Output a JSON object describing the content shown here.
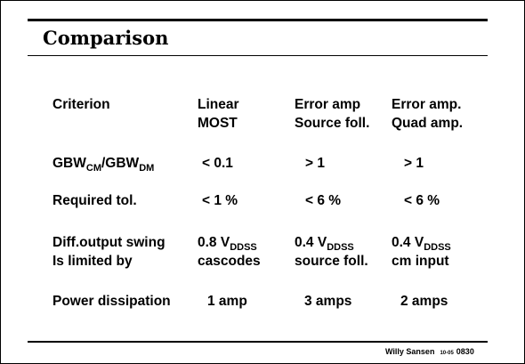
{
  "title": "Comparison",
  "table": {
    "header": {
      "criterion": "Criterion",
      "col1": [
        "Linear",
        "MOST"
      ],
      "col2": [
        "Error amp",
        "Source foll."
      ],
      "col3": [
        "Error amp.",
        "Quad amp."
      ]
    },
    "gbw": {
      "label_main1": "GBW",
      "label_sub1": "CM",
      "label_mid": "/GBW",
      "label_sub2": "DM",
      "col1": "< 0.1",
      "col2": "> 1",
      "col3": "> 1"
    },
    "tol": {
      "label": "Required tol.",
      "col1": "< 1 %",
      "col2": "< 6 %",
      "col3": "< 6 %"
    },
    "swing": {
      "label": [
        "Diff.output swing",
        "Is limited by"
      ],
      "col1_value": "0.8 V",
      "col2_value": "0.4 V",
      "col3_value": "0.4 V",
      "subscript": "DDSS",
      "col1_limit": "cascodes",
      "col2_limit": "source foll.",
      "col3_limit": "cm input"
    },
    "power": {
      "label": "Power dissipation",
      "col1": "1 amp",
      "col2": "3 amps",
      "col3": "2 amps"
    }
  },
  "footer": {
    "author": "Willy Sansen",
    "date": "10-05",
    "slide_number": "0830"
  }
}
